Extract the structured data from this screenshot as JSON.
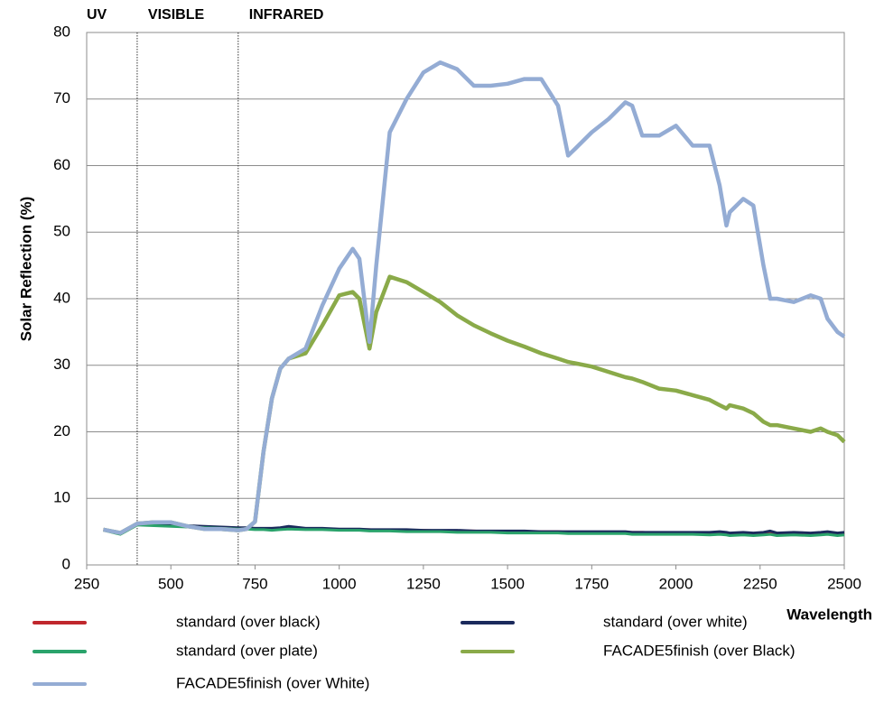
{
  "chart_data": {
    "type": "line",
    "y_label": "Solar Reflection (%)",
    "x_label": "Wavelength",
    "regions": [
      "UV",
      "VISIBLE",
      "INFRARED"
    ],
    "region_boundaries": [
      400,
      700
    ],
    "xlim": [
      250,
      2500
    ],
    "xticks": [
      250,
      500,
      750,
      1000,
      1250,
      1500,
      1750,
      2000,
      2250,
      2500
    ],
    "ylim": [
      0,
      80
    ],
    "yticks": [
      0,
      10,
      20,
      30,
      40,
      50,
      60,
      70,
      80
    ],
    "grid": true,
    "x": [
      300,
      350,
      400,
      450,
      500,
      550,
      600,
      650,
      700,
      725,
      750,
      775,
      800,
      825,
      850,
      900,
      950,
      1000,
      1040,
      1060,
      1090,
      1110,
      1150,
      1200,
      1250,
      1300,
      1350,
      1400,
      1450,
      1500,
      1550,
      1600,
      1650,
      1680,
      1700,
      1750,
      1800,
      1850,
      1870,
      1900,
      1950,
      2000,
      2050,
      2100,
      2130,
      2150,
      2160,
      2200,
      2230,
      2260,
      2280,
      2300,
      2350,
      2400,
      2430,
      2450,
      2480,
      2500
    ],
    "series": [
      {
        "name": "standard (over black)",
        "color": "#c0272d",
        "values": [
          5.3,
          4.7,
          6.1,
          6.0,
          5.9,
          5.8,
          5.7,
          5.6,
          5.5,
          5.5,
          5.4,
          5.4,
          5.4,
          5.5,
          5.6,
          5.4,
          5.4,
          5.3,
          5.3,
          5.3,
          5.3,
          5.2,
          5.2,
          5.2,
          5.2,
          5.1,
          5.1,
          5.1,
          5.0,
          5.0,
          5.0,
          5.0,
          5.0,
          4.9,
          4.9,
          4.9,
          4.9,
          4.9,
          4.9,
          4.9,
          4.8,
          4.8,
          4.8,
          4.8,
          4.9,
          4.8,
          4.7,
          4.8,
          4.7,
          4.8,
          4.9,
          4.7,
          4.8,
          4.7,
          4.8,
          4.9,
          4.7,
          4.8
        ]
      },
      {
        "name": "standard (over white)",
        "color": "#1b2a5c",
        "values": [
          5.4,
          4.8,
          6.2,
          6.1,
          6.0,
          5.9,
          5.8,
          5.7,
          5.6,
          5.6,
          5.5,
          5.5,
          5.5,
          5.6,
          5.8,
          5.5,
          5.5,
          5.4,
          5.4,
          5.4,
          5.3,
          5.3,
          5.3,
          5.3,
          5.2,
          5.2,
          5.2,
          5.1,
          5.1,
          5.1,
          5.1,
          5.0,
          5.0,
          5.0,
          5.0,
          5.0,
          5.0,
          5.0,
          4.9,
          4.9,
          4.9,
          4.9,
          4.9,
          4.9,
          5.0,
          4.9,
          4.8,
          4.9,
          4.8,
          4.9,
          5.1,
          4.8,
          4.9,
          4.8,
          4.9,
          5.0,
          4.8,
          4.9
        ]
      },
      {
        "name": "standard (over plate)",
        "color": "#2aa36b",
        "values": [
          5.2,
          4.6,
          6.0,
          5.9,
          5.8,
          5.7,
          5.6,
          5.5,
          5.4,
          5.4,
          5.3,
          5.3,
          5.2,
          5.3,
          5.4,
          5.3,
          5.3,
          5.2,
          5.2,
          5.2,
          5.1,
          5.1,
          5.1,
          5.0,
          5.0,
          5.0,
          4.9,
          4.9,
          4.9,
          4.8,
          4.8,
          4.8,
          4.8,
          4.7,
          4.7,
          4.7,
          4.7,
          4.7,
          4.6,
          4.6,
          4.6,
          4.6,
          4.6,
          4.5,
          4.6,
          4.5,
          4.4,
          4.5,
          4.4,
          4.5,
          4.6,
          4.4,
          4.5,
          4.4,
          4.5,
          4.6,
          4.4,
          4.5
        ]
      },
      {
        "name": "FACADE5finish (over Black)",
        "color": "#8aaa49",
        "values": [
          5.3,
          4.8,
          6.2,
          6.4,
          6.4,
          5.8,
          5.4,
          5.4,
          5.2,
          5.4,
          6.5,
          17,
          25,
          29.5,
          31,
          31.8,
          36,
          40.5,
          41,
          40,
          32.5,
          38,
          43.3,
          42.5,
          41,
          39.5,
          37.5,
          36,
          34.8,
          33.7,
          32.8,
          31.8,
          31,
          30.5,
          30.3,
          29.8,
          29,
          28.2,
          28,
          27.5,
          26.5,
          26.2,
          25.5,
          24.8,
          24,
          23.5,
          24,
          23.5,
          22.8,
          21.5,
          21,
          21,
          20.5,
          20,
          20.5,
          20,
          19.5,
          18.5
        ]
      },
      {
        "name": "FACADE5finish (over White)",
        "color": "#94acd4",
        "values": [
          5.3,
          4.8,
          6.2,
          6.4,
          6.4,
          5.8,
          5.4,
          5.4,
          5.2,
          5.4,
          6.5,
          17,
          25,
          29.5,
          31,
          32.5,
          39,
          44.5,
          47.5,
          46,
          33.5,
          45,
          65,
          70,
          74,
          75.5,
          74.5,
          72,
          72,
          72.3,
          73,
          73,
          69,
          61.5,
          62.5,
          65,
          67,
          69.5,
          69,
          64.5,
          64.5,
          66,
          63,
          63,
          57,
          51,
          53,
          55,
          54,
          45,
          40,
          40,
          39.5,
          40.5,
          40,
          37,
          35,
          34.3
        ]
      }
    ]
  }
}
